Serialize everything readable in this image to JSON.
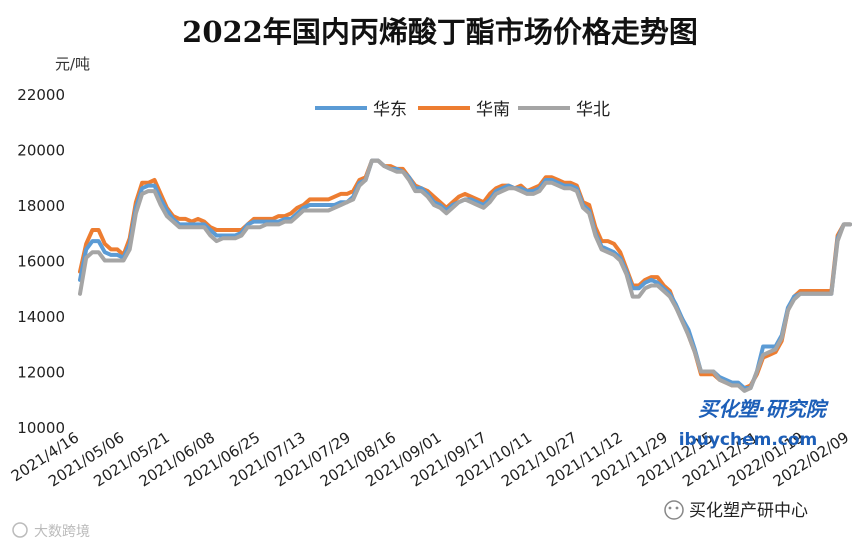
{
  "chart_data": {
    "type": "line",
    "title": "2022年国内丙烯酸丁酯市场价格走势图",
    "ylabel": "元/吨",
    "ylim": [
      10000,
      22000
    ],
    "yticks": [
      10000,
      12000,
      14000,
      16000,
      18000,
      20000,
      22000
    ],
    "xticks": [
      "2021/4/16",
      "2021/05/06",
      "2021/05/21",
      "2021/06/08",
      "2021/06/25",
      "2021/07/13",
      "2021/07/29",
      "2021/08/16",
      "2021/09/01",
      "2021/09/17",
      "2021/10/11",
      "2021/10/27",
      "2021/11/12",
      "2021/11/29",
      "2021/12/15",
      "2021/12/31",
      "2022/01/19",
      "2022/02/09"
    ],
    "legend_position": "top-center",
    "colors": {
      "华东": "#5b9bd5",
      "华南": "#ed7d31",
      "华北": "#a5a5a5"
    },
    "series": [
      {
        "name": "华东",
        "values": [
          15300,
          16400,
          16700,
          16700,
          16300,
          16200,
          16200,
          16100,
          16600,
          17900,
          18600,
          18700,
          18700,
          18200,
          17800,
          17500,
          17300,
          17300,
          17300,
          17300,
          17300,
          17100,
          16900,
          16900,
          16900,
          16900,
          17000,
          17300,
          17400,
          17400,
          17400,
          17400,
          17400,
          17500,
          17500,
          17700,
          17900,
          18000,
          18000,
          18000,
          18000,
          18000,
          18100,
          18100,
          18300,
          18800,
          18900,
          19600,
          19600,
          19400,
          19300,
          19300,
          19200,
          19000,
          18600,
          18600,
          18400,
          18100,
          18000,
          17800,
          18000,
          18100,
          18200,
          18200,
          18100,
          18000,
          18200,
          18500,
          18600,
          18700,
          18600,
          18600,
          18500,
          18500,
          18600,
          18900,
          18900,
          18800,
          18700,
          18700,
          18600,
          18000,
          17800,
          17000,
          16500,
          16400,
          16300,
          16100,
          15600,
          15000,
          15000,
          15200,
          15300,
          15200,
          15000,
          14800,
          14400,
          13900,
          13500,
          12800,
          12000,
          12000,
          12000,
          11800,
          11700,
          11600,
          11600,
          11400,
          11400,
          12000,
          12900,
          12900,
          12900,
          13300,
          14300,
          14700,
          14800,
          14800,
          14800,
          14800,
          14800,
          14800,
          16800,
          17300,
          17300
        ]
      },
      {
        "name": "华南",
        "values": [
          15600,
          16600,
          17100,
          17100,
          16600,
          16400,
          16400,
          16200,
          16800,
          18100,
          18800,
          18800,
          18900,
          18400,
          17900,
          17600,
          17500,
          17500,
          17400,
          17500,
          17400,
          17200,
          17100,
          17100,
          17100,
          17100,
          17100,
          17300,
          17500,
          17500,
          17500,
          17500,
          17600,
          17600,
          17700,
          17900,
          18000,
          18200,
          18200,
          18200,
          18200,
          18300,
          18400,
          18400,
          18500,
          18900,
          19000,
          19600,
          19600,
          19400,
          19400,
          19300,
          19300,
          19000,
          18700,
          18600,
          18500,
          18300,
          18100,
          17900,
          18100,
          18300,
          18400,
          18300,
          18200,
          18100,
          18400,
          18600,
          18700,
          18700,
          18600,
          18700,
          18500,
          18600,
          18700,
          19000,
          19000,
          18900,
          18800,
          18800,
          18700,
          18100,
          18000,
          17200,
          16700,
          16700,
          16600,
          16300,
          15700,
          15100,
          15100,
          15300,
          15400,
          15400,
          15100,
          14900,
          14300,
          13900,
          13300,
          12700,
          11900,
          11900,
          11900,
          11700,
          11600,
          11500,
          11500,
          11400,
          11500,
          11900,
          12500,
          12600,
          12700,
          13100,
          14200,
          14700,
          14900,
          14900,
          14900,
          14900,
          14900,
          14900,
          16900,
          17300,
          17300
        ]
      },
      {
        "name": "华北",
        "values": [
          14800,
          16100,
          16300,
          16300,
          16000,
          16000,
          16000,
          16000,
          16400,
          17700,
          18400,
          18500,
          18500,
          18000,
          17600,
          17400,
          17200,
          17200,
          17200,
          17200,
          17200,
          16900,
          16700,
          16800,
          16800,
          16800,
          16900,
          17200,
          17200,
          17200,
          17300,
          17300,
          17300,
          17400,
          17400,
          17600,
          17800,
          17800,
          17800,
          17800,
          17800,
          17900,
          18000,
          18100,
          18200,
          18700,
          18900,
          19600,
          19600,
          19400,
          19300,
          19200,
          19200,
          18900,
          18500,
          18500,
          18300,
          18000,
          17900,
          17700,
          17900,
          18100,
          18200,
          18100,
          18000,
          17900,
          18100,
          18400,
          18500,
          18600,
          18600,
          18500,
          18400,
          18400,
          18500,
          18800,
          18800,
          18700,
          18600,
          18600,
          18500,
          17900,
          17700,
          16900,
          16400,
          16300,
          16200,
          16000,
          15500,
          14700,
          14700,
          15000,
          15100,
          15100,
          14900,
          14700,
          14300,
          13800,
          13300,
          12700,
          12000,
          12000,
          12000,
          11700,
          11600,
          11500,
          11500,
          11300,
          11400,
          12000,
          12600,
          12700,
          12800,
          13200,
          14200,
          14600,
          14800,
          14800,
          14800,
          14800,
          14800,
          14800,
          16700,
          17300,
          17300
        ]
      }
    ]
  },
  "watermark": {
    "brand": "买化塑·研究院",
    "site": "ibuychem.com",
    "wechat": "买化塑产研中心",
    "corner": "大数跨境"
  }
}
